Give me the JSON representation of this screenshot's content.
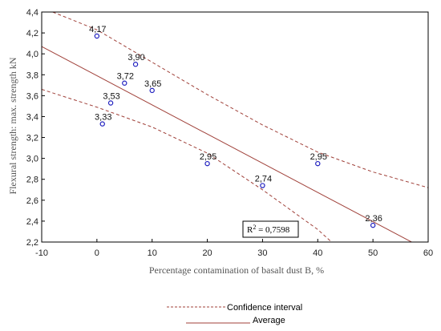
{
  "chart_data": {
    "type": "scatter",
    "xlabel": "Percentage contamination of basalt dust B, %",
    "ylabel": "Flexural strength: max. strength kN",
    "xlim": [
      -10,
      60
    ],
    "ylim": [
      2.2,
      4.4
    ],
    "x_ticks": [
      "-10",
      "0",
      "10",
      "20",
      "30",
      "40",
      "50",
      "60"
    ],
    "y_ticks": [
      "2,2",
      "2,4",
      "2,6",
      "2,8",
      "3,0",
      "3,2",
      "3,4",
      "3,6",
      "3,8",
      "4,0",
      "4,2",
      "4,4"
    ],
    "grid": false,
    "points": [
      {
        "x": 0,
        "y": 4.17,
        "label": "4,17"
      },
      {
        "x": 7,
        "y": 3.9,
        "label": "3,90"
      },
      {
        "x": 5,
        "y": 3.72,
        "label": "3,72"
      },
      {
        "x": 10,
        "y": 3.65,
        "label": "3,65"
      },
      {
        "x": 2.5,
        "y": 3.53,
        "label": "3,53"
      },
      {
        "x": 1,
        "y": 3.33,
        "label": "3,33"
      },
      {
        "x": 20,
        "y": 2.95,
        "label": "2,95"
      },
      {
        "x": 40,
        "y": 2.95,
        "label": "2,95"
      },
      {
        "x": 30,
        "y": 2.74,
        "label": "2,74"
      },
      {
        "x": 50,
        "y": 2.36,
        "label": "2,36"
      }
    ],
    "regression": {
      "name": "Average",
      "x": [
        -10,
        57
      ],
      "y": [
        4.07,
        2.2
      ]
    },
    "confidence_upper": {
      "name": "Confidence interval",
      "x": [
        -8,
        0,
        10,
        20,
        30,
        40,
        50,
        60
      ],
      "y": [
        4.4,
        4.23,
        3.92,
        3.61,
        3.32,
        3.06,
        2.87,
        2.72
      ]
    },
    "confidence_lower": {
      "name": "Confidence interval",
      "x": [
        -10,
        0,
        10,
        20,
        30,
        40,
        42.5
      ],
      "y": [
        3.66,
        3.49,
        3.3,
        3.05,
        2.7,
        2.32,
        2.2
      ]
    },
    "annotation": {
      "text_main": "R",
      "text_sup": "2",
      "text_rest": " = 0,7598"
    },
    "legend": {
      "position": "bottom",
      "items": [
        {
          "label": "Confidence interval",
          "style": "dashed",
          "color": "#a0413a"
        },
        {
          "label": "Average",
          "style": "solid",
          "color": "#a0413a"
        }
      ]
    },
    "colors": {
      "line": "#a0413a",
      "points": "#1f1fbf"
    }
  }
}
